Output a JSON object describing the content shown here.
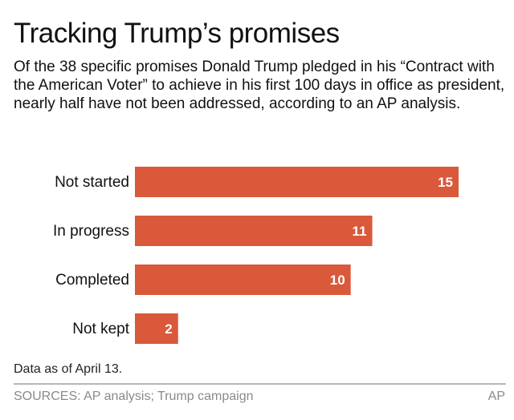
{
  "title": "Tracking Trump’s promises",
  "subtitle": "Of the 38 specific promises Donald Trump pledged in his “Contract with the American Voter” to achieve in his first 100 days in office as president, nearly half have not been addressed, according to an AP analysis.",
  "note": "Data as of April 13.",
  "sources": "SOURCES: AP analysis; Trump campaign",
  "credit": "AP",
  "chart_data": {
    "type": "bar",
    "orientation": "horizontal",
    "categories": [
      "Not started",
      "In progress",
      "Completed",
      "Not kept"
    ],
    "values": [
      15,
      11,
      10,
      2
    ],
    "data_labels": [
      "15",
      "11",
      "10",
      "2"
    ],
    "xlim": [
      0,
      15
    ],
    "grid": false,
    "bar_color": "#d9593a",
    "label_color": "#ffffff"
  }
}
